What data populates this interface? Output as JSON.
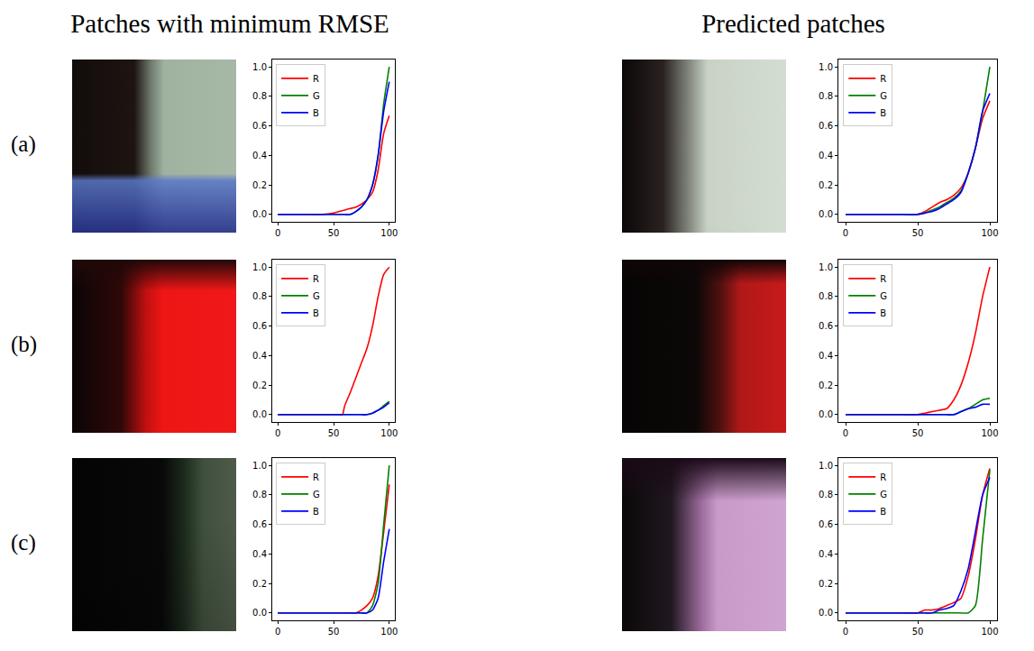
{
  "headers": [
    "Patches with minimum RMSE",
    "Predicted patches"
  ],
  "row_labels": [
    "(a)",
    "(b)",
    "(c)"
  ],
  "chart_data": [
    {
      "type": "line",
      "xlim": [
        -5,
        105
      ],
      "xticks": [
        0,
        50,
        100
      ],
      "ylim": [
        -0.05,
        1.05
      ],
      "yticks": [
        {
          "value": 0,
          "label": "0.0"
        },
        {
          "value": 0.2,
          "label": "0.2"
        },
        {
          "value": 0.4,
          "label": "0.4"
        },
        {
          "value": 0.6,
          "label": "0.6"
        },
        {
          "value": 0.8,
          "label": "0.8"
        },
        {
          "value": 1,
          "label": "1.0"
        }
      ],
      "legend": "upper left",
      "grid": false,
      "x": [
        0,
        10,
        20,
        30,
        40,
        50,
        55,
        60,
        65,
        70,
        75,
        80,
        85,
        90,
        95,
        100
      ],
      "series": [
        {
          "name": "R",
          "color": "#ff0000",
          "values": [
            0,
            0,
            0,
            0,
            0,
            0.01,
            0.02,
            0.03,
            0.04,
            0.05,
            0.07,
            0.1,
            0.15,
            0.3,
            0.55,
            0.67
          ]
        },
        {
          "name": "G",
          "color": "#008000",
          "values": [
            0,
            0,
            0,
            0,
            0,
            0,
            0,
            0,
            0,
            0.02,
            0.05,
            0.1,
            0.2,
            0.4,
            0.75,
            1.0
          ]
        },
        {
          "name": "B",
          "color": "#0000ff",
          "values": [
            0,
            0,
            0,
            0,
            0,
            0,
            0,
            0,
            0,
            0.02,
            0.05,
            0.1,
            0.2,
            0.4,
            0.7,
            0.9
          ]
        }
      ]
    },
    {
      "type": "line",
      "xlim": [
        -5,
        105
      ],
      "xticks": [
        0,
        50,
        100
      ],
      "ylim": [
        -0.05,
        1.05
      ],
      "yticks": [
        {
          "value": 0,
          "label": "0.0"
        },
        {
          "value": 0.2,
          "label": "0.2"
        },
        {
          "value": 0.4,
          "label": "0.4"
        },
        {
          "value": 0.6,
          "label": "0.6"
        },
        {
          "value": 0.8,
          "label": "0.8"
        },
        {
          "value": 1,
          "label": "1.0"
        }
      ],
      "legend": "upper left",
      "grid": false,
      "x": [
        0,
        10,
        20,
        30,
        40,
        50,
        55,
        60,
        65,
        70,
        75,
        80,
        85,
        90,
        95,
        100
      ],
      "series": [
        {
          "name": "R",
          "color": "#ff0000",
          "values": [
            0,
            0,
            0,
            0,
            0,
            0,
            0.02,
            0.05,
            0.08,
            0.1,
            0.13,
            0.18,
            0.28,
            0.45,
            0.65,
            0.77
          ]
        },
        {
          "name": "G",
          "color": "#008000",
          "values": [
            0,
            0,
            0,
            0,
            0,
            0,
            0.01,
            0.03,
            0.05,
            0.08,
            0.11,
            0.16,
            0.28,
            0.45,
            0.7,
            1.0
          ]
        },
        {
          "name": "B",
          "color": "#0000ff",
          "values": [
            0,
            0,
            0,
            0,
            0,
            0,
            0.01,
            0.02,
            0.04,
            0.07,
            0.1,
            0.15,
            0.28,
            0.45,
            0.7,
            0.82
          ]
        }
      ]
    },
    {
      "type": "line",
      "xlim": [
        -5,
        105
      ],
      "xticks": [
        0,
        50,
        100
      ],
      "ylim": [
        -0.05,
        1.05
      ],
      "yticks": [
        {
          "value": 0,
          "label": "0.0"
        },
        {
          "value": 0.2,
          "label": "0.2"
        },
        {
          "value": 0.4,
          "label": "0.4"
        },
        {
          "value": 0.6,
          "label": "0.6"
        },
        {
          "value": 0.8,
          "label": "0.8"
        },
        {
          "value": 1,
          "label": "1.0"
        }
      ],
      "legend": "upper left",
      "grid": false,
      "x": [
        0,
        10,
        20,
        30,
        40,
        50,
        55,
        58,
        60,
        65,
        70,
        75,
        80,
        85,
        90,
        95,
        100
      ],
      "series": [
        {
          "name": "R",
          "color": "#ff0000",
          "values": [
            0,
            0,
            0,
            0,
            0,
            0,
            0,
            0,
            0.06,
            0.15,
            0.25,
            0.35,
            0.45,
            0.6,
            0.8,
            0.95,
            1.0
          ]
        },
        {
          "name": "G",
          "color": "#008000",
          "values": [
            0,
            0,
            0,
            0,
            0,
            0,
            0,
            0,
            0,
            0,
            0,
            0,
            0,
            0.01,
            0.03,
            0.06,
            0.09
          ]
        },
        {
          "name": "B",
          "color": "#0000ff",
          "values": [
            0,
            0,
            0,
            0,
            0,
            0,
            0,
            0,
            0,
            0,
            0,
            0,
            0,
            0.01,
            0.03,
            0.05,
            0.08
          ]
        }
      ]
    },
    {
      "type": "line",
      "xlim": [
        -5,
        105
      ],
      "xticks": [
        0,
        50,
        100
      ],
      "ylim": [
        -0.05,
        1.05
      ],
      "yticks": [
        {
          "value": 0,
          "label": "0.0"
        },
        {
          "value": 0.2,
          "label": "0.2"
        },
        {
          "value": 0.4,
          "label": "0.4"
        },
        {
          "value": 0.6,
          "label": "0.6"
        },
        {
          "value": 0.8,
          "label": "0.8"
        },
        {
          "value": 1,
          "label": "1.0"
        }
      ],
      "legend": "upper left",
      "grid": false,
      "x": [
        0,
        10,
        20,
        30,
        40,
        50,
        55,
        60,
        65,
        70,
        75,
        80,
        85,
        90,
        95,
        100
      ],
      "series": [
        {
          "name": "R",
          "color": "#ff0000",
          "values": [
            0,
            0,
            0,
            0,
            0,
            0,
            0.01,
            0.02,
            0.03,
            0.04,
            0.1,
            0.2,
            0.35,
            0.55,
            0.8,
            1.0
          ]
        },
        {
          "name": "G",
          "color": "#008000",
          "values": [
            0,
            0,
            0,
            0,
            0,
            0,
            0,
            0,
            0,
            0,
            0,
            0.02,
            0.04,
            0.07,
            0.1,
            0.11
          ]
        },
        {
          "name": "B",
          "color": "#0000ff",
          "values": [
            0,
            0,
            0,
            0,
            0,
            0,
            0,
            0,
            0,
            0,
            0,
            0.02,
            0.04,
            0.05,
            0.07,
            0.07
          ]
        }
      ]
    },
    {
      "type": "line",
      "xlim": [
        -5,
        105
      ],
      "xticks": [
        0,
        50,
        100
      ],
      "ylim": [
        -0.05,
        1.05
      ],
      "yticks": [
        {
          "value": 0,
          "label": "0.0"
        },
        {
          "value": 0.2,
          "label": "0.2"
        },
        {
          "value": 0.4,
          "label": "0.4"
        },
        {
          "value": 0.6,
          "label": "0.6"
        },
        {
          "value": 0.8,
          "label": "0.8"
        },
        {
          "value": 1,
          "label": "1.0"
        }
      ],
      "legend": "upper left",
      "grid": false,
      "x": [
        0,
        10,
        20,
        30,
        40,
        50,
        55,
        60,
        65,
        70,
        75,
        80,
        85,
        90,
        95,
        100
      ],
      "series": [
        {
          "name": "R",
          "color": "#ff0000",
          "values": [
            0,
            0,
            0,
            0,
            0,
            0,
            0,
            0,
            0,
            0,
            0.02,
            0.05,
            0.1,
            0.25,
            0.55,
            0.87
          ]
        },
        {
          "name": "G",
          "color": "#008000",
          "values": [
            0,
            0,
            0,
            0,
            0,
            0,
            0,
            0,
            0,
            0,
            0,
            0,
            0.05,
            0.2,
            0.6,
            1.0
          ]
        },
        {
          "name": "B",
          "color": "#0000ff",
          "values": [
            0,
            0,
            0,
            0,
            0,
            0,
            0,
            0,
            0,
            0,
            0,
            0,
            0.02,
            0.1,
            0.35,
            0.57
          ]
        }
      ]
    },
    {
      "type": "line",
      "xlim": [
        -5,
        105
      ],
      "xticks": [
        0,
        50,
        100
      ],
      "ylim": [
        -0.05,
        1.05
      ],
      "yticks": [
        {
          "value": 0,
          "label": "0.0"
        },
        {
          "value": 0.2,
          "label": "0.2"
        },
        {
          "value": 0.4,
          "label": "0.4"
        },
        {
          "value": 0.6,
          "label": "0.6"
        },
        {
          "value": 0.8,
          "label": "0.8"
        },
        {
          "value": 1,
          "label": "1.0"
        }
      ],
      "legend": "upper left",
      "grid": false,
      "x": [
        0,
        10,
        20,
        30,
        40,
        50,
        55,
        60,
        65,
        70,
        75,
        80,
        85,
        90,
        95,
        100
      ],
      "series": [
        {
          "name": "R",
          "color": "#ff0000",
          "values": [
            0,
            0,
            0,
            0,
            0,
            0,
            0.02,
            0.02,
            0.03,
            0.05,
            0.07,
            0.1,
            0.25,
            0.5,
            0.8,
            0.98
          ]
        },
        {
          "name": "G",
          "color": "#008000",
          "values": [
            0,
            0,
            0,
            0,
            0,
            0,
            0,
            0,
            0,
            0,
            0,
            0,
            0,
            0.05,
            0.5,
            0.97
          ]
        },
        {
          "name": "B",
          "color": "#0000ff",
          "values": [
            0,
            0,
            0,
            0,
            0,
            0,
            0,
            0,
            0.02,
            0.03,
            0.05,
            0.15,
            0.3,
            0.55,
            0.8,
            0.92
          ]
        }
      ]
    }
  ]
}
